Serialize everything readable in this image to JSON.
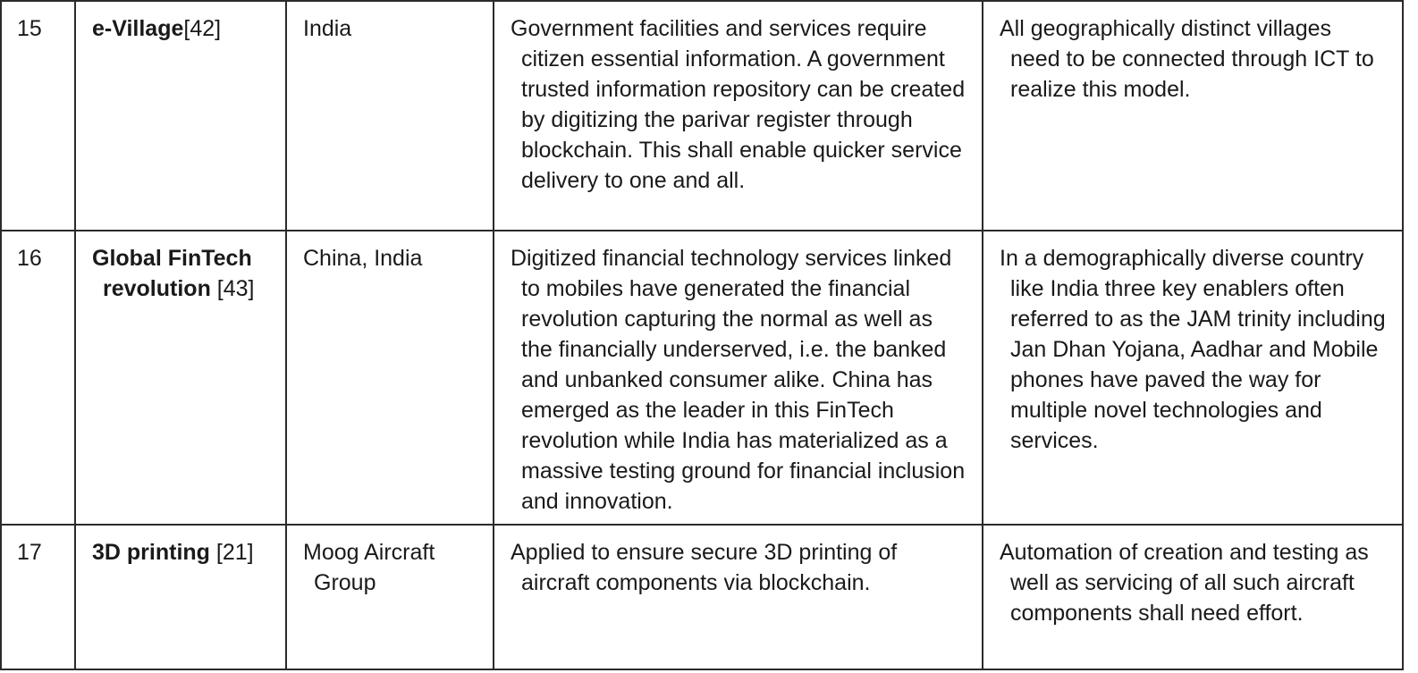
{
  "rows": [
    {
      "no": "15",
      "application": "e-Village",
      "reference": "[42]",
      "region": "India",
      "description": "Government facilities and services require citizen essential information. A government trusted information repository can be created by digitizing the parivar register through blockchain. This shall enable quicker service delivery to one and all.",
      "remarks": "All geographically distinct villages need to be connected through ICT to realize this model."
    },
    {
      "no": "16",
      "application": "Global FinTech revolution",
      "reference": "[43]",
      "region": "China, India",
      "description": "Digitized financial technology services linked to mobiles have generated the financial revolution capturing the normal as well as the financially underserved, i.e. the banked and unbanked consumer alike. China has emerged as the leader in this FinTech revolution while India has materialized as a massive testing ground for financial inclusion and innovation.",
      "remarks": "In a demographically diverse country like India three key enablers often referred to as the JAM trinity including Jan Dhan Yojana, Aadhar and Mobile phones have paved the way for multiple novel technologies and services."
    },
    {
      "no": "17",
      "application": "3D printing",
      "reference": "[21]",
      "region": "Moog Aircraft Group",
      "description": "Applied to ensure secure 3D printing of aircraft components via blockchain.",
      "remarks": "Automation of creation and testing as well as servicing of all such aircraft components shall need effort."
    }
  ]
}
